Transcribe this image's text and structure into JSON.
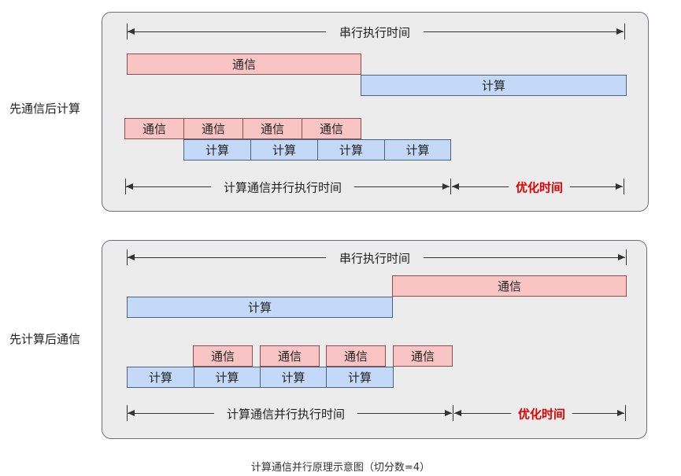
{
  "panels": [
    {
      "side_label": "先通信后计算",
      "serial_label": "串行执行时间",
      "serial_comm": "通信",
      "serial_comp": "计算",
      "pipe_comm": [
        "通信",
        "通信",
        "通信",
        "通信"
      ],
      "pipe_comp": [
        "计算",
        "计算",
        "计算",
        "计算"
      ],
      "parallel_label": "计算通信并行执行时间",
      "saved_label": "优化时间"
    },
    {
      "side_label": "先计算后通信",
      "serial_label": "串行执行时间",
      "serial_comm": "通信",
      "serial_comp": "计算",
      "pipe_comm": [
        "通信",
        "通信",
        "通信",
        "通信"
      ],
      "pipe_comp": [
        "计算",
        "计算",
        "计算",
        "计算"
      ],
      "parallel_label": "计算通信并行执行时间",
      "saved_label": "优化时间"
    }
  ],
  "caption": "计算通信并行原理示意图（切分数=4）",
  "colors": {
    "comm": "#f9c4c4",
    "comp": "#c4d8f7",
    "highlight": "#e00000"
  }
}
